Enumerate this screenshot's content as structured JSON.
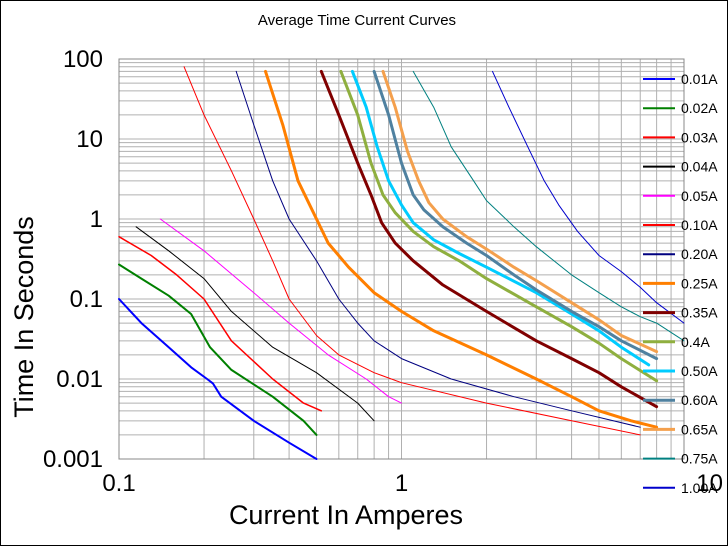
{
  "chart_data": {
    "type": "line",
    "title": "Average Time Current Curves",
    "xlabel": "Current In Amperes",
    "ylabel": "Time In Seconds",
    "x_scale": "log",
    "y_scale": "log",
    "xlim": [
      0.1,
      10
    ],
    "ylim": [
      0.001,
      100
    ],
    "x_ticks": [
      "0.1",
      "1",
      "10"
    ],
    "y_ticks": [
      "100",
      "10",
      "1",
      "0.1",
      "0.01",
      "0.001"
    ],
    "grid": true,
    "legend_position": "right",
    "series": [
      {
        "name": "0.01A",
        "color": "#0000ff",
        "width": 2,
        "points": [
          [
            0.1,
            0.1
          ],
          [
            0.12,
            0.05
          ],
          [
            0.15,
            0.025
          ],
          [
            0.18,
            0.014
          ],
          [
            0.205,
            0.01
          ],
          [
            0.215,
            0.0088
          ],
          [
            0.23,
            0.006
          ],
          [
            0.3,
            0.003
          ],
          [
            0.4,
            0.0016
          ],
          [
            0.5,
            0.001
          ]
        ]
      },
      {
        "name": "0.02A",
        "color": "#008000",
        "width": 2,
        "points": [
          [
            0.1,
            0.27
          ],
          [
            0.12,
            0.18
          ],
          [
            0.15,
            0.11
          ],
          [
            0.18,
            0.065
          ],
          [
            0.21,
            0.025
          ],
          [
            0.25,
            0.013
          ],
          [
            0.35,
            0.006
          ],
          [
            0.45,
            0.003
          ],
          [
            0.5,
            0.002
          ]
        ]
      },
      {
        "name": "0.03A",
        "color": "#ff0000",
        "width": 1.5,
        "points": [
          [
            0.1,
            0.6
          ],
          [
            0.13,
            0.35
          ],
          [
            0.16,
            0.2
          ],
          [
            0.2,
            0.1
          ],
          [
            0.25,
            0.03
          ],
          [
            0.35,
            0.01
          ],
          [
            0.45,
            0.005
          ],
          [
            0.52,
            0.004
          ]
        ]
      },
      {
        "name": "0.04A",
        "color": "#000000",
        "width": 1,
        "points": [
          [
            0.115,
            0.8
          ],
          [
            0.15,
            0.4
          ],
          [
            0.2,
            0.18
          ],
          [
            0.25,
            0.07
          ],
          [
            0.35,
            0.025
          ],
          [
            0.5,
            0.012
          ],
          [
            0.7,
            0.005
          ],
          [
            0.8,
            0.003
          ]
        ]
      },
      {
        "name": "0.05A",
        "color": "#ff00ff",
        "width": 1,
        "points": [
          [
            0.14,
            1
          ],
          [
            0.2,
            0.4
          ],
          [
            0.3,
            0.12
          ],
          [
            0.4,
            0.05
          ],
          [
            0.55,
            0.02
          ],
          [
            0.75,
            0.01
          ],
          [
            0.9,
            0.006
          ],
          [
            1.0,
            0.005
          ]
        ]
      },
      {
        "name": "0.10A",
        "color": "#ff0000",
        "width": 1,
        "points": [
          [
            0.17,
            80
          ],
          [
            0.2,
            20
          ],
          [
            0.25,
            4
          ],
          [
            0.3,
            1
          ],
          [
            0.35,
            0.3
          ],
          [
            0.4,
            0.1
          ],
          [
            0.5,
            0.035
          ],
          [
            0.6,
            0.02
          ],
          [
            0.8,
            0.012
          ],
          [
            1.0,
            0.009
          ],
          [
            2,
            0.005
          ],
          [
            4,
            0.003
          ],
          [
            7,
            0.002
          ]
        ]
      },
      {
        "name": "0.20A",
        "color": "#000080",
        "width": 1,
        "points": [
          [
            0.26,
            70
          ],
          [
            0.3,
            15
          ],
          [
            0.35,
            3
          ],
          [
            0.4,
            1
          ],
          [
            0.5,
            0.3
          ],
          [
            0.6,
            0.1
          ],
          [
            0.7,
            0.05
          ],
          [
            0.8,
            0.03
          ],
          [
            1.0,
            0.018
          ],
          [
            1.5,
            0.01
          ],
          [
            2.5,
            0.006
          ],
          [
            4,
            0.004
          ],
          [
            7,
            0.0025
          ]
        ]
      },
      {
        "name": "0.25A",
        "color": "#ff7f00",
        "width": 3,
        "points": [
          [
            0.33,
            70
          ],
          [
            0.38,
            15
          ],
          [
            0.43,
            3
          ],
          [
            0.5,
            1
          ],
          [
            0.55,
            0.5
          ],
          [
            0.65,
            0.25
          ],
          [
            0.8,
            0.12
          ],
          [
            1.0,
            0.07
          ],
          [
            1.3,
            0.04
          ],
          [
            2,
            0.02
          ],
          [
            3,
            0.01
          ],
          [
            4,
            0.006
          ],
          [
            5,
            0.004
          ],
          [
            6.5,
            0.003
          ],
          [
            8,
            0.0025
          ]
        ]
      },
      {
        "name": "0.35A",
        "color": "#800000",
        "width": 3,
        "points": [
          [
            0.52,
            70
          ],
          [
            0.6,
            20
          ],
          [
            0.7,
            5
          ],
          [
            0.78,
            2
          ],
          [
            0.85,
            0.9
          ],
          [
            0.95,
            0.5
          ],
          [
            1.1,
            0.3
          ],
          [
            1.4,
            0.15
          ],
          [
            2,
            0.07
          ],
          [
            3,
            0.03
          ],
          [
            4,
            0.018
          ],
          [
            5,
            0.012
          ],
          [
            6,
            0.008
          ],
          [
            8,
            0.0045
          ]
        ]
      },
      {
        "name": "0.4A",
        "color": "#8faf3f",
        "width": 3,
        "points": [
          [
            0.61,
            70
          ],
          [
            0.7,
            20
          ],
          [
            0.78,
            5
          ],
          [
            0.86,
            2
          ],
          [
            0.95,
            1.2
          ],
          [
            1.1,
            0.7
          ],
          [
            1.3,
            0.45
          ],
          [
            1.6,
            0.3
          ],
          [
            2,
            0.18
          ],
          [
            3,
            0.08
          ],
          [
            4,
            0.045
          ],
          [
            5,
            0.028
          ],
          [
            6,
            0.018
          ],
          [
            8,
            0.0095
          ]
        ]
      },
      {
        "name": "0.50A",
        "color": "#00ccff",
        "width": 3,
        "points": [
          [
            0.67,
            70
          ],
          [
            0.75,
            25
          ],
          [
            0.82,
            8
          ],
          [
            0.9,
            3
          ],
          [
            1.0,
            1.5
          ],
          [
            1.1,
            0.9
          ],
          [
            1.3,
            0.55
          ],
          [
            1.6,
            0.37
          ],
          [
            2,
            0.25
          ],
          [
            3,
            0.12
          ],
          [
            4,
            0.065
          ],
          [
            5,
            0.04
          ],
          [
            6,
            0.025
          ],
          [
            7.5,
            0.015
          ]
        ]
      },
      {
        "name": "0.60A",
        "color": "#4f81a0",
        "width": 3,
        "points": [
          [
            0.8,
            70
          ],
          [
            0.9,
            20
          ],
          [
            1.0,
            5
          ],
          [
            1.1,
            2
          ],
          [
            1.2,
            1.3
          ],
          [
            1.4,
            0.8
          ],
          [
            1.7,
            0.5
          ],
          [
            2,
            0.35
          ],
          [
            2.5,
            0.2
          ],
          [
            3,
            0.13
          ],
          [
            4,
            0.07
          ],
          [
            5,
            0.045
          ],
          [
            6,
            0.03
          ],
          [
            8,
            0.018
          ]
        ]
      },
      {
        "name": "0.65A",
        "color": "#f4a04d",
        "width": 3,
        "points": [
          [
            0.86,
            70
          ],
          [
            0.95,
            25
          ],
          [
            1.05,
            7
          ],
          [
            1.15,
            3
          ],
          [
            1.25,
            1.6
          ],
          [
            1.4,
            1
          ],
          [
            1.7,
            0.6
          ],
          [
            2,
            0.42
          ],
          [
            2.5,
            0.25
          ],
          [
            3,
            0.17
          ],
          [
            4,
            0.09
          ],
          [
            5,
            0.055
          ],
          [
            6,
            0.035
          ],
          [
            8,
            0.022
          ]
        ]
      },
      {
        "name": "0.75A",
        "color": "#008080",
        "width": 1,
        "points": [
          [
            1.1,
            70
          ],
          [
            1.3,
            25
          ],
          [
            1.5,
            8
          ],
          [
            1.8,
            3
          ],
          [
            2,
            1.7
          ],
          [
            2.5,
            0.8
          ],
          [
            3,
            0.45
          ],
          [
            4,
            0.2
          ],
          [
            5,
            0.12
          ],
          [
            6,
            0.08
          ],
          [
            7,
            0.06
          ],
          [
            8,
            0.05
          ],
          [
            10,
            0.03
          ]
        ]
      },
      {
        "name": "1.00A",
        "color": "#0000cc",
        "width": 1,
        "points": [
          [
            2.1,
            70
          ],
          [
            2.4,
            25
          ],
          [
            2.8,
            8
          ],
          [
            3.2,
            3
          ],
          [
            3.6,
            1.5
          ],
          [
            4.2,
            0.7
          ],
          [
            5,
            0.35
          ],
          [
            6,
            0.22
          ],
          [
            7,
            0.14
          ],
          [
            8,
            0.09
          ],
          [
            10,
            0.05
          ]
        ]
      }
    ]
  }
}
